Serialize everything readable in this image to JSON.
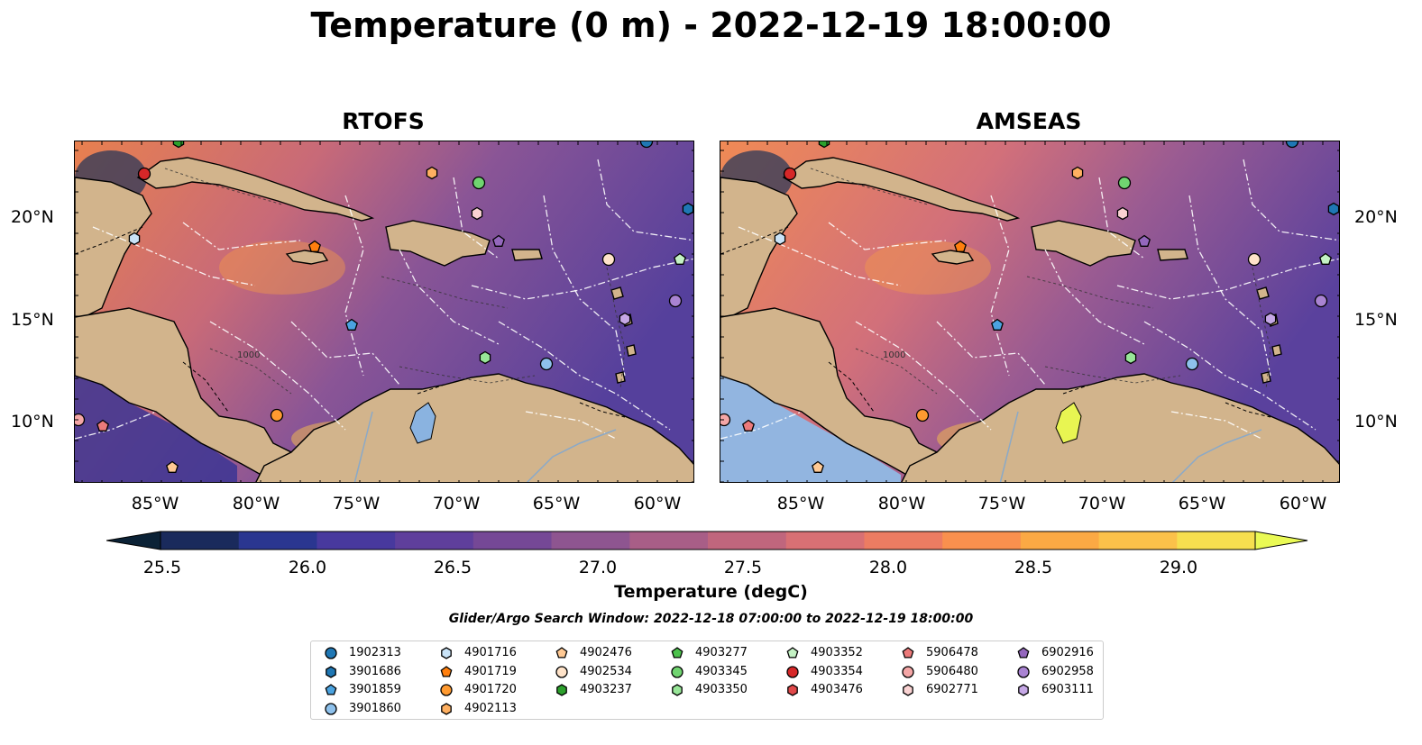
{
  "title": "Temperature (0 m) - 2022-12-19 18:00:00",
  "panels": [
    {
      "title": "RTOFS",
      "key": "rtofs"
    },
    {
      "title": "AMSEAS",
      "key": "amseas"
    }
  ],
  "x_ticks": [
    "85°W",
    "80°W",
    "75°W",
    "70°W",
    "65°W",
    "60°W"
  ],
  "y_ticks": [
    "20°N",
    "15°N",
    "10°N"
  ],
  "colorbar": {
    "ticks": [
      "25.5",
      "26.0",
      "26.5",
      "27.0",
      "27.5",
      "28.0",
      "28.5",
      "29.0"
    ],
    "label": "Temperature (degC)",
    "colors": [
      "#0b2236",
      "#1a2a5c",
      "#2a3690",
      "#48399e",
      "#5f3f9c",
      "#754896",
      "#8e5590",
      "#a85e87",
      "#c0667d",
      "#d87074",
      "#ec7c62",
      "#f9904e",
      "#fba944",
      "#fbc14a",
      "#f6df4f",
      "#eafa55"
    ]
  },
  "search_window": "Glider/Argo Search Window: 2022-12-18 07:00:00 to 2022-12-19 18:00:00",
  "contour_label": "1000",
  "legend": [
    {
      "id": "1902313",
      "marker": "circle",
      "color": "#1f77b4"
    },
    {
      "id": "3901686",
      "marker": "hexagon",
      "color": "#1f77b4"
    },
    {
      "id": "3901859",
      "marker": "pentagon",
      "color": "#4ba3e0"
    },
    {
      "id": "3901860",
      "marker": "circle",
      "color": "#8ec1ec"
    },
    {
      "id": "4901716",
      "marker": "hexagon",
      "color": "#c9e3f7"
    },
    {
      "id": "4901719",
      "marker": "pentagon",
      "color": "#ff7f0e"
    },
    {
      "id": "4901720",
      "marker": "circle",
      "color": "#ff9a30"
    },
    {
      "id": "4902113",
      "marker": "hexagon",
      "color": "#ffb061"
    },
    {
      "id": "4902476",
      "marker": "pentagon",
      "color": "#ffc994"
    },
    {
      "id": "4902534",
      "marker": "circle",
      "color": "#ffe3c9"
    },
    {
      "id": "4903237",
      "marker": "hexagon",
      "color": "#2ca02c"
    },
    {
      "id": "4903277",
      "marker": "pentagon",
      "color": "#4cc24c"
    },
    {
      "id": "4903345",
      "marker": "circle",
      "color": "#70d470"
    },
    {
      "id": "4903350",
      "marker": "hexagon",
      "color": "#98e698"
    },
    {
      "id": "4903352",
      "marker": "pentagon",
      "color": "#c4f2c4"
    },
    {
      "id": "4903354",
      "marker": "circle",
      "color": "#d62728"
    },
    {
      "id": "4903476",
      "marker": "hexagon",
      "color": "#e0494a"
    },
    {
      "id": "5906478",
      "marker": "pentagon",
      "color": "#ec7a7a"
    },
    {
      "id": "5906480",
      "marker": "circle",
      "color": "#f4a6a6"
    },
    {
      "id": "6902771",
      "marker": "hexagon",
      "color": "#fad3d3"
    },
    {
      "id": "6902916",
      "marker": "pentagon",
      "color": "#9467bd"
    },
    {
      "id": "6902958",
      "marker": "circle",
      "color": "#a983d2"
    },
    {
      "id": "6903111",
      "marker": "hexagon",
      "color": "#c6a8e6"
    }
  ]
}
